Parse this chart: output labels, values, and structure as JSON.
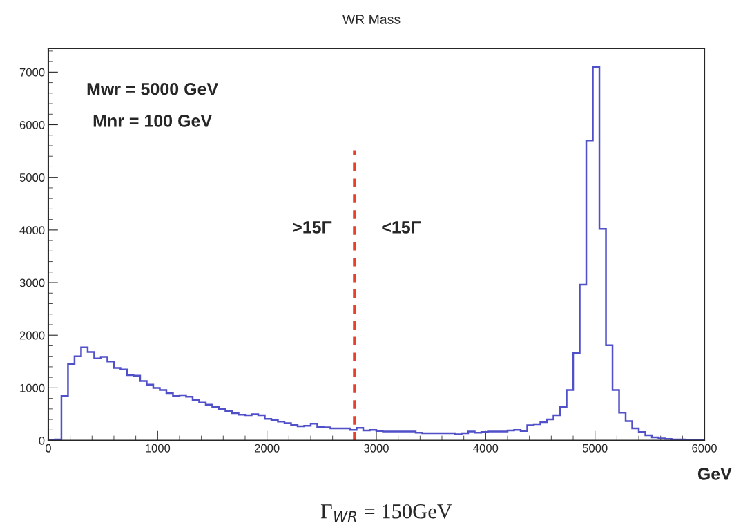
{
  "chart_data": {
    "type": "histogram",
    "title": "WR Mass",
    "xlabel": "GeV",
    "bins": [
      0,
      60,
      120,
      180,
      240,
      300,
      360,
      420,
      480,
      540,
      600,
      660,
      720,
      780,
      840,
      900,
      960,
      1020,
      1080,
      1140,
      1200,
      1260,
      1320,
      1380,
      1440,
      1500,
      1560,
      1620,
      1680,
      1740,
      1800,
      1860,
      1920,
      1980,
      2040,
      2100,
      2160,
      2220,
      2280,
      2340,
      2400,
      2460,
      2520,
      2580,
      2640,
      2700,
      2760,
      2820,
      2880,
      2940,
      3000,
      3060,
      3120,
      3180,
      3240,
      3300,
      3360,
      3420,
      3480,
      3540,
      3600,
      3660,
      3720,
      3780,
      3840,
      3900,
      3960,
      4020,
      4080,
      4140,
      4200,
      4260,
      4320,
      4380,
      4440,
      4500,
      4560,
      4620,
      4680,
      4740,
      4800,
      4860,
      4920,
      4980,
      5040,
      5100,
      5160,
      5220,
      5280,
      5340,
      5400,
      5460,
      5520,
      5580,
      5640,
      5700,
      5760,
      5820,
      5880,
      5940,
      6000
    ],
    "values": [
      10,
      20,
      850,
      1450,
      1600,
      1770,
      1680,
      1560,
      1590,
      1500,
      1380,
      1350,
      1240,
      1230,
      1130,
      1060,
      1000,
      960,
      900,
      850,
      860,
      830,
      770,
      720,
      680,
      640,
      600,
      560,
      520,
      490,
      480,
      500,
      480,
      410,
      390,
      360,
      330,
      300,
      270,
      280,
      320,
      260,
      250,
      230,
      230,
      230,
      200,
      240,
      190,
      200,
      180,
      170,
      170,
      170,
      170,
      170,
      150,
      140,
      140,
      140,
      140,
      140,
      120,
      140,
      170,
      150,
      160,
      170,
      170,
      170,
      190,
      200,
      180,
      290,
      310,
      350,
      400,
      480,
      640,
      960,
      1660,
      2960,
      5700,
      7100,
      4020,
      1810,
      960,
      530,
      370,
      230,
      160,
      100,
      60,
      40,
      30,
      20,
      20,
      10,
      10,
      10
    ],
    "color": "#5050c8",
    "xlim": [
      0,
      6000
    ],
    "xticks": [
      0,
      1000,
      2000,
      3000,
      4000,
      5000,
      6000
    ],
    "ylim": [
      0,
      7450
    ],
    "yticks": [
      0,
      1000,
      2000,
      3000,
      4000,
      5000,
      6000,
      7000
    ],
    "grid": false,
    "ref_lines": [
      {
        "axis": "x",
        "value": 2800,
        "color": "#e8402a",
        "line_style": "dashed"
      }
    ],
    "annotations": [
      "Mwr = 5000 GeV",
      "Mnr = 100 GeV",
      ">15Γ",
      "<15Γ",
      "Γ$_{WR}$ = 150GeV"
    ]
  }
}
